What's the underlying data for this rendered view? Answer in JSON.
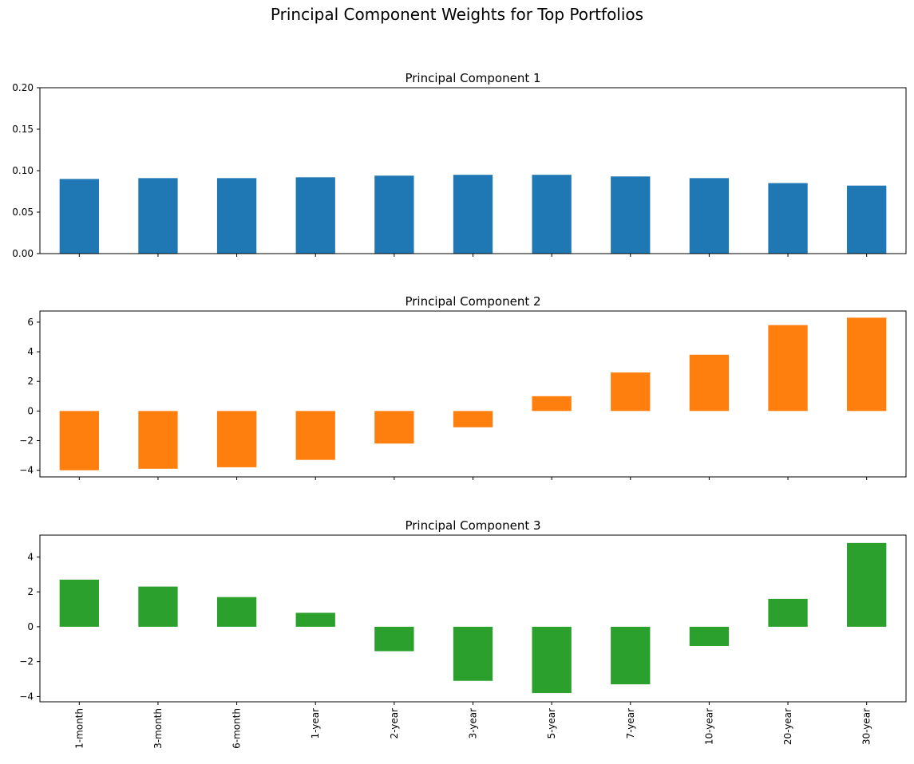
{
  "figure": {
    "suptitle": "Principal Component Weights for Top Portfolios"
  },
  "chart_data": [
    {
      "type": "bar",
      "title": "Principal Component 1",
      "categories": [
        "1-month",
        "3-month",
        "6-month",
        "1-year",
        "2-year",
        "3-year",
        "5-year",
        "7-year",
        "10-year",
        "20-year",
        "30-year"
      ],
      "values": [
        0.09,
        0.091,
        0.091,
        0.092,
        0.094,
        0.095,
        0.095,
        0.093,
        0.091,
        0.085,
        0.082
      ],
      "ylim": [
        0,
        0.2
      ],
      "yticks": [
        0.0,
        0.05,
        0.1,
        0.15,
        0.2
      ],
      "ytick_labels": [
        "0.00",
        "0.05",
        "0.10",
        "0.15",
        "0.20"
      ],
      "color": "#1f77b4",
      "show_xtick_labels": false
    },
    {
      "type": "bar",
      "title": "Principal Component 2",
      "categories": [
        "1-month",
        "3-month",
        "6-month",
        "1-year",
        "2-year",
        "3-year",
        "5-year",
        "7-year",
        "10-year",
        "20-year",
        "30-year"
      ],
      "values": [
        -4.0,
        -3.9,
        -3.8,
        -3.3,
        -2.2,
        -1.1,
        1.0,
        2.6,
        3.8,
        5.8,
        6.3
      ],
      "ylim": [
        -4.45,
        6.75
      ],
      "yticks": [
        -4,
        -2,
        0,
        2,
        4,
        6
      ],
      "ytick_labels": [
        "−4",
        "−2",
        "0",
        "2",
        "4",
        "6"
      ],
      "color": "#ff7f0e",
      "show_xtick_labels": false
    },
    {
      "type": "bar",
      "title": "Principal Component 3",
      "categories": [
        "1-month",
        "3-month",
        "6-month",
        "1-year",
        "2-year",
        "3-year",
        "5-year",
        "7-year",
        "10-year",
        "20-year",
        "30-year"
      ],
      "values": [
        2.7,
        2.3,
        1.7,
        0.8,
        -1.4,
        -3.1,
        -3.8,
        -3.3,
        -1.1,
        1.6,
        4.8
      ],
      "ylim": [
        -4.3,
        5.25
      ],
      "yticks": [
        -4,
        -2,
        0,
        2,
        4
      ],
      "ytick_labels": [
        "−4",
        "−2",
        "0",
        "2",
        "4"
      ],
      "color": "#2ca02c",
      "show_xtick_labels": true
    }
  ]
}
